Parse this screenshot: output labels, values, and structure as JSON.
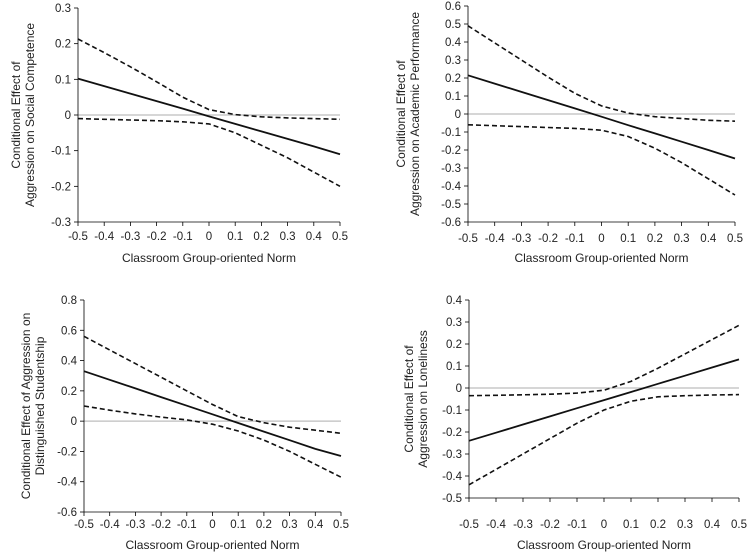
{
  "chart_data": [
    {
      "type": "line",
      "xlabel": "Classroom Group-oriented Norm",
      "ylabel_lines": [
        "Conditional Effect of",
        "Aggression on Social Competence"
      ],
      "x": [
        -0.5,
        -0.4,
        -0.3,
        -0.2,
        -0.1,
        0,
        0.1,
        0.2,
        0.3,
        0.4,
        0.5
      ],
      "xlim": [
        -0.5,
        0.5
      ],
      "ylim": [
        -0.3,
        0.3
      ],
      "yticks": [
        0.3,
        0.2,
        0.1,
        0,
        -0.1,
        -0.2,
        -0.3
      ],
      "ytick_labels": [
        "0.3",
        "0.2",
        "0.1",
        "0",
        "-0.1",
        "-0.2",
        "-0.3"
      ],
      "xtick_labels": [
        "-0.5",
        "-0.4",
        "-0.3",
        "-0.2",
        "-0.1",
        "0",
        "0.1",
        "0.2",
        "0.3",
        "0.4",
        "0.5"
      ],
      "series": [
        {
          "name": "estimate",
          "style": "solid",
          "values": [
            0.102,
            0.081,
            0.06,
            0.039,
            0.018,
            -0.004,
            -0.025,
            -0.046,
            -0.067,
            -0.088,
            -0.11
          ]
        },
        {
          "name": "upper CI",
          "style": "dashed",
          "values": [
            0.213,
            0.175,
            0.135,
            0.093,
            0.05,
            0.015,
            0.001,
            -0.005,
            -0.008,
            -0.01,
            -0.012
          ]
        },
        {
          "name": "lower CI",
          "style": "dashed",
          "values": [
            -0.01,
            -0.012,
            -0.014,
            -0.016,
            -0.019,
            -0.025,
            -0.05,
            -0.085,
            -0.12,
            -0.16,
            -0.2
          ]
        }
      ]
    },
    {
      "type": "line",
      "xlabel": "Classroom Group-oriented Norm",
      "ylabel_lines": [
        "Conditional Effect of",
        "Aggression on Academic Performance"
      ],
      "x": [
        -0.5,
        -0.4,
        -0.3,
        -0.2,
        -0.1,
        0,
        0.1,
        0.2,
        0.3,
        0.4,
        0.5
      ],
      "xlim": [
        -0.5,
        0.5
      ],
      "ylim": [
        -0.6,
        0.6
      ],
      "yticks": [
        0.6,
        0.5,
        0.4,
        0.3,
        0.2,
        0.1,
        0,
        -0.1,
        -0.2,
        -0.3,
        -0.4,
        -0.5,
        -0.6
      ],
      "ytick_labels": [
        "0.6",
        "0.5",
        "0.4",
        "0.3",
        "0.2",
        "0.1",
        "0",
        "-0.1",
        "-0.2",
        "-0.3",
        "-0.4",
        "-0.5",
        "-0.6"
      ],
      "xtick_labels": [
        "-0.5",
        "-0.4",
        "-0.3",
        "-0.2",
        "-0.1",
        "0",
        "0.1",
        "0.2",
        "0.3",
        "0.4",
        "0.5"
      ],
      "series": [
        {
          "name": "estimate",
          "style": "solid",
          "values": [
            0.215,
            0.169,
            0.123,
            0.077,
            0.031,
            -0.015,
            -0.062,
            -0.108,
            -0.154,
            -0.2,
            -0.247
          ]
        },
        {
          "name": "upper CI",
          "style": "dashed",
          "values": [
            0.49,
            0.395,
            0.3,
            0.205,
            0.115,
            0.045,
            0.005,
            -0.015,
            -0.025,
            -0.035,
            -0.04
          ]
        },
        {
          "name": "lower CI",
          "style": "dashed",
          "values": [
            -0.06,
            -0.065,
            -0.07,
            -0.075,
            -0.08,
            -0.09,
            -0.125,
            -0.19,
            -0.27,
            -0.36,
            -0.45
          ]
        }
      ]
    },
    {
      "type": "line",
      "xlabel": "Classroom Group-oriented Norm",
      "ylabel_lines": [
        "Conditional Effect of Aggression on",
        "Distinguished Studentship"
      ],
      "x": [
        -0.5,
        -0.4,
        -0.3,
        -0.2,
        -0.1,
        0,
        0.1,
        0.2,
        0.3,
        0.4,
        0.5
      ],
      "xlim": [
        -0.5,
        0.5
      ],
      "ylim": [
        -0.6,
        0.8
      ],
      "yticks": [
        0.8,
        0.6,
        0.4,
        0.2,
        0,
        -0.2,
        -0.4,
        -0.6
      ],
      "ytick_labels": [
        "0.8",
        "0.6",
        "0.4",
        "0.2",
        "0",
        "-0.2",
        "-0.4",
        "-0.6"
      ],
      "xtick_labels": [
        "-0.5",
        "-0.4",
        "-0.3",
        "-0.2",
        "-0.1",
        "0",
        "0.1",
        "0.2",
        "0.3",
        "0.4",
        "0.5"
      ],
      "series": [
        {
          "name": "estimate",
          "style": "solid",
          "values": [
            0.33,
            0.273,
            0.216,
            0.159,
            0.102,
            0.045,
            -0.012,
            -0.069,
            -0.126,
            -0.183,
            -0.23
          ]
        },
        {
          "name": "upper CI",
          "style": "dashed",
          "values": [
            0.56,
            0.47,
            0.38,
            0.29,
            0.2,
            0.11,
            0.03,
            -0.01,
            -0.04,
            -0.06,
            -0.08
          ]
        },
        {
          "name": "lower CI",
          "style": "dashed",
          "values": [
            0.1,
            0.072,
            0.048,
            0.027,
            0.008,
            -0.02,
            -0.065,
            -0.125,
            -0.2,
            -0.285,
            -0.37
          ]
        }
      ]
    },
    {
      "type": "line",
      "xlabel": "Classroom Group-oriented Norm",
      "ylabel_lines": [
        "Conditional Effect of",
        "Aggression on Loneliness"
      ],
      "x": [
        -0.5,
        -0.4,
        -0.3,
        -0.2,
        -0.1,
        0,
        0.1,
        0.2,
        0.3,
        0.4,
        0.5
      ],
      "xlim": [
        -0.5,
        0.5
      ],
      "ylim": [
        -0.5,
        0.4
      ],
      "yticks": [
        0.4,
        0.3,
        0.2,
        0.1,
        0,
        -0.1,
        -0.2,
        -0.3,
        -0.4,
        -0.5
      ],
      "ytick_labels": [
        "0.4",
        "0.3",
        "0.2",
        "0.1",
        "0",
        "-0.1",
        "-0.2",
        "-0.3",
        "-0.4",
        "-0.5"
      ],
      "xtick_labels": [
        "-0.5",
        "-0.4",
        "-0.3",
        "-0.2",
        "-0.1",
        "0",
        "0.1",
        "0.2",
        "0.3",
        "0.4",
        "0.5"
      ],
      "series": [
        {
          "name": "estimate",
          "style": "solid",
          "values": [
            -0.24,
            -0.203,
            -0.166,
            -0.129,
            -0.092,
            -0.055,
            -0.018,
            0.019,
            0.056,
            0.093,
            0.13
          ]
        },
        {
          "name": "upper CI",
          "style": "dashed",
          "values": [
            -0.035,
            -0.033,
            -0.031,
            -0.028,
            -0.023,
            -0.01,
            0.03,
            0.09,
            0.155,
            0.22,
            0.285
          ]
        },
        {
          "name": "lower CI",
          "style": "dashed",
          "values": [
            -0.44,
            -0.37,
            -0.3,
            -0.23,
            -0.16,
            -0.1,
            -0.06,
            -0.04,
            -0.035,
            -0.032,
            -0.03
          ]
        }
      ]
    }
  ]
}
